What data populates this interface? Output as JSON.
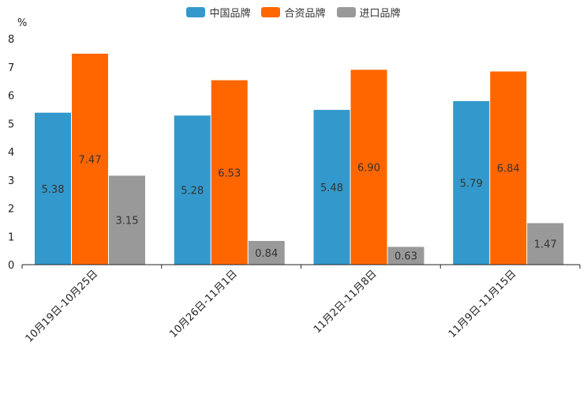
{
  "chart_data": {
    "type": "bar",
    "title": "",
    "ylabel": "%",
    "xlabel": "",
    "ylim": [
      0,
      8
    ],
    "yticks": [
      "0",
      "1",
      "2",
      "3",
      "4",
      "5",
      "6",
      "7",
      "8"
    ],
    "categories": [
      "10月19日-10月25日",
      "10月26日-11月1日",
      "11月2日-11月8日",
      "11月9日-11月15日"
    ],
    "series": [
      {
        "name": "中国品牌",
        "color": "#3399cc",
        "values": [
          5.38,
          5.28,
          5.48,
          5.79
        ],
        "labels": [
          "5.38",
          "5.28",
          "5.48",
          "5.79"
        ]
      },
      {
        "name": "合资品牌",
        "color": "#ff6600",
        "values": [
          7.47,
          6.53,
          6.9,
          6.84
        ],
        "labels": [
          "7.47",
          "6.53",
          "6.90",
          "6.84"
        ]
      },
      {
        "name": "进口品牌",
        "color": "#999999",
        "values": [
          3.15,
          0.84,
          0.63,
          1.47
        ],
        "labels": [
          "3.15",
          "0.84",
          "0.63",
          "1.47"
        ]
      }
    ],
    "legend_position": "top-center",
    "grid": false
  }
}
